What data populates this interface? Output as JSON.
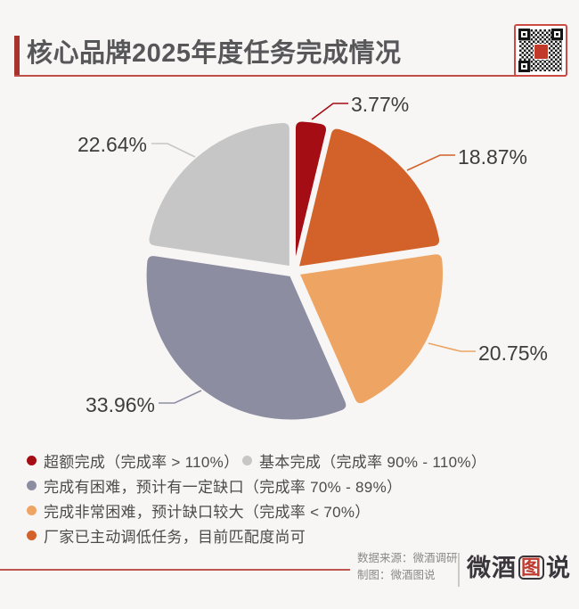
{
  "header": {
    "title": "核心品牌2025年度任务完成情况"
  },
  "chart_data": {
    "type": "pie",
    "title": "核心品牌2025年度任务完成情况",
    "start_angle": "12-oclock",
    "direction": "clockwise",
    "unit": "percent",
    "slices": [
      {
        "name": "超额完成（完成率 > 110%）",
        "value": 3.77,
        "pct_label": "3.77%",
        "color": "#a40d13"
      },
      {
        "name": "厂家已主动调低任务，目前匹配度尚可",
        "value": 18.87,
        "pct_label": "18.87%",
        "color": "#d2622a"
      },
      {
        "name": "完成非常困难，预计缺口较大（完成率 < 70%）",
        "value": 20.75,
        "pct_label": "20.75%",
        "color": "#eea563"
      },
      {
        "name": "完成有困难，预计有一定缺口（完成率 70% - 89%）",
        "value": 33.96,
        "pct_label": "33.96%",
        "color": "#8d8da2"
      },
      {
        "name": "基本完成（完成率 90% - 110%）",
        "value": 22.64,
        "pct_label": "22.64%",
        "color": "#c6c6c6"
      }
    ]
  },
  "legend": {
    "items": [
      {
        "label": "超额完成（完成率 > 110%）",
        "color": "#a40d13"
      },
      {
        "label": "基本完成（完成率 90% - 110%）",
        "color": "#c6c6c6"
      },
      {
        "label": "完成有困难，预计有一定缺口（完成率 70% - 89%）",
        "color": "#8d8da2"
      },
      {
        "label": "完成非常困难，预计缺口较大（完成率 < 70%）",
        "color": "#eea563"
      },
      {
        "label": "厂家已主动调低任务，目前匹配度尚可",
        "color": "#d2622a"
      }
    ]
  },
  "footer": {
    "source": "数据来源：微酒调研",
    "credit": "制图：微酒图说",
    "logo_left": "微酒",
    "logo_boxed": "图",
    "logo_right": "说"
  }
}
